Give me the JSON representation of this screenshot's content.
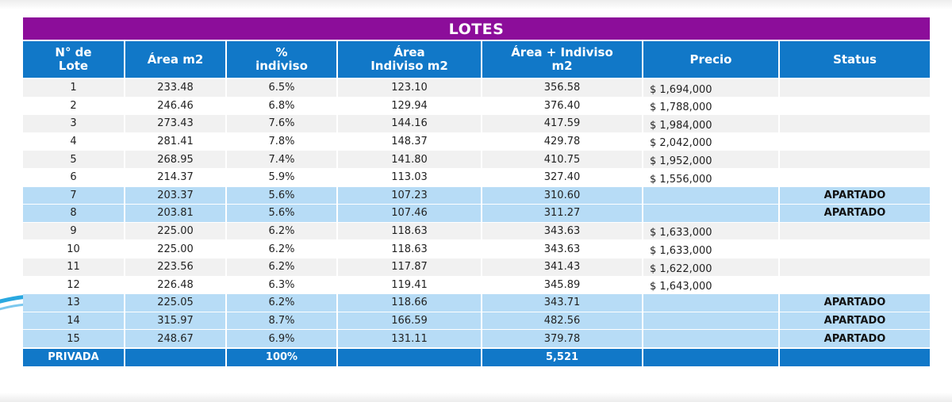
{
  "title": "LOTES",
  "columns": [
    "N° de\nLote",
    "Área m2",
    "%\nindiviso",
    "Área\nIndiviso m2",
    "Área + Indiviso\nm2",
    "Precio",
    "Status"
  ],
  "rows": [
    {
      "lote": "1",
      "area": "233.48",
      "indiviso_pct": "6.5%",
      "area_indiviso": "123.10",
      "area_total": "356.58",
      "precio": "$  1,694,000",
      "status": ""
    },
    {
      "lote": "2",
      "area": "246.46",
      "indiviso_pct": "6.8%",
      "area_indiviso": "129.94",
      "area_total": "376.40",
      "precio": "$  1,788,000",
      "status": ""
    },
    {
      "lote": "3",
      "area": "273.43",
      "indiviso_pct": "7.6%",
      "area_indiviso": "144.16",
      "area_total": "417.59",
      "precio": "$  1,984,000",
      "status": ""
    },
    {
      "lote": "4",
      "area": "281.41",
      "indiviso_pct": "7.8%",
      "area_indiviso": "148.37",
      "area_total": "429.78",
      "precio": "$  2,042,000",
      "status": ""
    },
    {
      "lote": "5",
      "area": "268.95",
      "indiviso_pct": "7.4%",
      "area_indiviso": "141.80",
      "area_total": "410.75",
      "precio": "$  1,952,000",
      "status": ""
    },
    {
      "lote": "6",
      "area": "214.37",
      "indiviso_pct": "5.9%",
      "area_indiviso": "113.03",
      "area_total": "327.40",
      "precio": "$  1,556,000",
      "status": ""
    },
    {
      "lote": "7",
      "area": "203.37",
      "indiviso_pct": "5.6%",
      "area_indiviso": "107.23",
      "area_total": "310.60",
      "precio": "",
      "status": "APARTADO"
    },
    {
      "lote": "8",
      "area": "203.81",
      "indiviso_pct": "5.6%",
      "area_indiviso": "107.46",
      "area_total": "311.27",
      "precio": "",
      "status": "APARTADO"
    },
    {
      "lote": "9",
      "area": "225.00",
      "indiviso_pct": "6.2%",
      "area_indiviso": "118.63",
      "area_total": "343.63",
      "precio": "$  1,633,000",
      "status": ""
    },
    {
      "lote": "10",
      "area": "225.00",
      "indiviso_pct": "6.2%",
      "area_indiviso": "118.63",
      "area_total": "343.63",
      "precio": "$  1,633,000",
      "status": ""
    },
    {
      "lote": "11",
      "area": "223.56",
      "indiviso_pct": "6.2%",
      "area_indiviso": "117.87",
      "area_total": "341.43",
      "precio": "$  1,622,000",
      "status": ""
    },
    {
      "lote": "12",
      "area": "226.48",
      "indiviso_pct": "6.3%",
      "area_indiviso": "119.41",
      "area_total": "345.89",
      "precio": "$  1,643,000",
      "status": ""
    },
    {
      "lote": "13",
      "area": "225.05",
      "indiviso_pct": "6.2%",
      "area_indiviso": "118.66",
      "area_total": "343.71",
      "precio": "",
      "status": "APARTADO"
    },
    {
      "lote": "14",
      "area": "315.97",
      "indiviso_pct": "8.7%",
      "area_indiviso": "166.59",
      "area_total": "482.56",
      "precio": "",
      "status": "APARTADO"
    },
    {
      "lote": "15",
      "area": "248.67",
      "indiviso_pct": "6.9%",
      "area_indiviso": "131.11",
      "area_total": "379.78",
      "precio": "",
      "status": "APARTADO"
    }
  ],
  "footer": {
    "label": "PRIVADA",
    "area": "",
    "indiviso_pct": "100%",
    "area_indiviso": "",
    "area_total": "5,521",
    "precio": "",
    "status": ""
  },
  "colors": {
    "title_bg": "#8c0d9a",
    "header_bg": "#1178c8",
    "apartado_row": "#b7dcf6"
  }
}
